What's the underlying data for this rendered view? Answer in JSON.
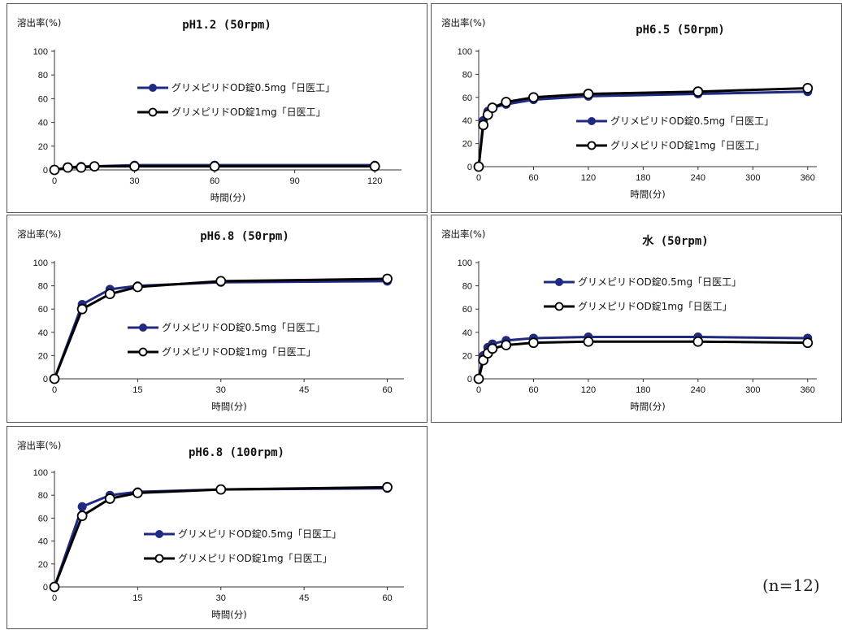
{
  "colors": {
    "series_a": "#1f2a80",
    "series_b": "#000000",
    "frame": "#555555"
  },
  "note": "(n=12)",
  "chart_data": [
    {
      "type": "line",
      "title": "pH1.2 (50rpm)",
      "ylabel": "溶出率(%)",
      "xlabel": "時間(分)",
      "xlim": [
        0,
        130
      ],
      "ylim": [
        0,
        100
      ],
      "xticks": [
        0,
        30,
        60,
        90,
        120
      ],
      "yticks": [
        0,
        20,
        40,
        60,
        80,
        100
      ],
      "legend": "top-center",
      "series": [
        {
          "name": "グリメピリドOD錠0.5mg「日医工」",
          "x": [
            0,
            5,
            10,
            15,
            30,
            60,
            120
          ],
          "y": [
            0,
            2,
            3,
            3,
            4,
            4,
            4
          ]
        },
        {
          "name": "グリメピリドOD錠1mg「日医工」",
          "x": [
            0,
            5,
            10,
            15,
            30,
            60,
            120
          ],
          "y": [
            0,
            2,
            2,
            3,
            3,
            3,
            3
          ]
        }
      ]
    },
    {
      "type": "line",
      "title": "pH6.5 (50rpm)",
      "ylabel": "溶出率(%)",
      "xlabel": "時間(分)",
      "xlim": [
        0,
        370
      ],
      "ylim": [
        0,
        100
      ],
      "xticks": [
        0,
        60,
        120,
        180,
        240,
        300,
        360
      ],
      "yticks": [
        0,
        20,
        40,
        60,
        80,
        100
      ],
      "legend": "right",
      "series": [
        {
          "name": "グリメピリドOD錠0.5mg「日医工」",
          "x": [
            0,
            5,
            10,
            15,
            30,
            60,
            120,
            240,
            360
          ],
          "y": [
            0,
            40,
            48,
            51,
            54,
            58,
            61,
            63,
            65
          ]
        },
        {
          "name": "グリメピリドOD錠1mg「日医工」",
          "x": [
            0,
            5,
            10,
            15,
            30,
            60,
            120,
            240,
            360
          ],
          "y": [
            0,
            36,
            45,
            51,
            56,
            60,
            63,
            65,
            68
          ]
        }
      ]
    },
    {
      "type": "line",
      "title": "pH6.8 (50rpm)",
      "ylabel": "溶出率(%)",
      "xlabel": "時間(分)",
      "xlim": [
        0,
        63
      ],
      "ylim": [
        0,
        100
      ],
      "xticks": [
        0,
        15,
        30,
        45,
        60
      ],
      "yticks": [
        0,
        20,
        40,
        60,
        80,
        100
      ],
      "legend": "bottom-right",
      "series": [
        {
          "name": "グリメピリドOD錠0.5mg「日医工」",
          "x": [
            0,
            5,
            10,
            15,
            30,
            60
          ],
          "y": [
            0,
            64,
            77,
            80,
            83,
            84
          ]
        },
        {
          "name": "グリメピリドOD錠1mg「日医工」",
          "x": [
            0,
            5,
            10,
            15,
            30,
            60
          ],
          "y": [
            0,
            60,
            73,
            79,
            84,
            86
          ]
        }
      ]
    },
    {
      "type": "line",
      "title": "水 (50rpm)",
      "ylabel": "溶出率(%)",
      "xlabel": "時間(分)",
      "xlim": [
        0,
        370
      ],
      "ylim": [
        0,
        100
      ],
      "xticks": [
        0,
        60,
        120,
        180,
        240,
        300,
        360
      ],
      "yticks": [
        0,
        20,
        40,
        60,
        80,
        100
      ],
      "legend": "top-center",
      "series": [
        {
          "name": "グリメピリドOD錠0.5mg「日医工」",
          "x": [
            0,
            5,
            10,
            15,
            30,
            60,
            120,
            240,
            360
          ],
          "y": [
            0,
            20,
            27,
            30,
            33,
            35,
            36,
            36,
            35
          ]
        },
        {
          "name": "グリメピリドOD錠1mg「日医工」",
          "x": [
            0,
            5,
            10,
            15,
            30,
            60,
            120,
            240,
            360
          ],
          "y": [
            0,
            16,
            22,
            26,
            29,
            31,
            32,
            32,
            31
          ]
        }
      ]
    },
    {
      "type": "line",
      "title": "pH6.8 (100rpm)",
      "ylabel": "溶出率(%)",
      "xlabel": "時間(分)",
      "xlim": [
        0,
        63
      ],
      "ylim": [
        0,
        100
      ],
      "xticks": [
        0,
        15,
        30,
        45,
        60
      ],
      "yticks": [
        0,
        20,
        40,
        60,
        80,
        100
      ],
      "legend": "bottom-right",
      "series": [
        {
          "name": "グリメピリドOD錠0.5mg「日医工」",
          "x": [
            0,
            5,
            10,
            15,
            30,
            60
          ],
          "y": [
            0,
            70,
            80,
            83,
            85,
            86
          ]
        },
        {
          "name": "グリメピリドOD錠1mg「日医工」",
          "x": [
            0,
            5,
            10,
            15,
            30,
            60
          ],
          "y": [
            0,
            62,
            77,
            82,
            85,
            87
          ]
        }
      ]
    }
  ]
}
